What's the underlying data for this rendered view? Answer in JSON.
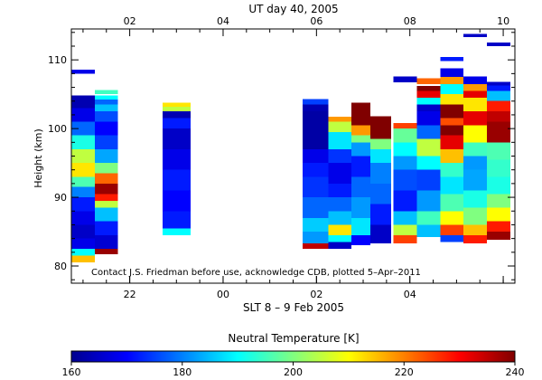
{
  "chart_data": {
    "type": "heatmap",
    "top_axis": {
      "title": "UT day 40, 2005",
      "tick_values": [
        2,
        4,
        6,
        8,
        10
      ],
      "tick_labels": [
        "02",
        "04",
        "06",
        "08",
        "10"
      ],
      "range": [
        0.75,
        10.25
      ]
    },
    "bottom_axis": {
      "title": "SLT 8 – 9 Feb 2005",
      "tick_values": [
        22,
        24,
        26,
        28
      ],
      "tick_labels": [
        "22",
        "00",
        "02",
        "04"
      ],
      "range": [
        20.75,
        30.25
      ]
    },
    "y_axis": {
      "title": "Height (km)",
      "tick_values": [
        80,
        90,
        100,
        110
      ],
      "tick_labels": [
        "80",
        "90",
        "100",
        "110"
      ],
      "range": [
        77.5,
        114.5
      ]
    },
    "annotation": "Contact J.S. Friedman before use, acknowledge CDB, plotted 5–Apr–2011",
    "colorbar": {
      "title": "Neutral Temperature [K]",
      "range": [
        160,
        240
      ],
      "tick_values": [
        160,
        180,
        200,
        220,
        240
      ],
      "tick_labels": [
        "160",
        "180",
        "200",
        "220",
        "240"
      ],
      "colormap": [
        "#00008f",
        "#0000ff",
        "#0080ff",
        "#00ffff",
        "#80ff80",
        "#ffff00",
        "#ff8000",
        "#ff0000",
        "#800000"
      ]
    },
    "columns": [
      {
        "ut": [
          0.75,
          1.25
        ],
        "z": [
          80.5,
          104.8
        ],
        "levels": [
          [
            80.5,
            215
          ],
          [
            81.5,
            190
          ],
          [
            82.5,
            168
          ],
          [
            84,
            165
          ],
          [
            86,
            168
          ],
          [
            88,
            172
          ],
          [
            90,
            180
          ],
          [
            91.5,
            196
          ],
          [
            93,
            212
          ],
          [
            95,
            205
          ],
          [
            97,
            192
          ],
          [
            99,
            178
          ],
          [
            101,
            168
          ],
          [
            103,
            163
          ]
        ]
      },
      {
        "ut": [
          0.75,
          1.25
        ],
        "z": [
          108,
          108.6
        ],
        "levels": [
          [
            108,
            168
          ]
        ]
      },
      {
        "ut": [
          1.25,
          1.75
        ],
        "z": [
          81.7,
          104.8
        ],
        "levels": [
          [
            81.7,
            238
          ],
          [
            82.5,
            166
          ],
          [
            84.5,
            172
          ],
          [
            86.5,
            185
          ],
          [
            88.5,
            205
          ],
          [
            89.5,
            228
          ],
          [
            90.5,
            238
          ],
          [
            92,
            222
          ],
          [
            93.5,
            200
          ],
          [
            95,
            183
          ],
          [
            97,
            175
          ],
          [
            99,
            170
          ],
          [
            101,
            176
          ],
          [
            102.5,
            185
          ],
          [
            103.5,
            178
          ],
          [
            104.2,
            190
          ]
        ]
      },
      {
        "ut": [
          1.25,
          1.75
        ],
        "z": [
          105,
          105.6
        ],
        "levels": [
          [
            105,
            195
          ]
        ]
      },
      {
        "ut": [
          2.7,
          3.3
        ],
        "z": [
          84.5,
          103.8
        ],
        "levels": [
          [
            84.5,
            190
          ],
          [
            85.5,
            172
          ],
          [
            88,
            170
          ],
          [
            91,
            172
          ],
          [
            94,
            168
          ],
          [
            97,
            165
          ],
          [
            100,
            172
          ],
          [
            101.5,
            163
          ],
          [
            102.5,
            205
          ],
          [
            103.2,
            212
          ]
        ]
      },
      {
        "ut": [
          5.7,
          6.25
        ],
        "z": [
          82.5,
          104.3
        ],
        "levels": [
          [
            82.5,
            235
          ],
          [
            83.3,
            182
          ],
          [
            85,
            186
          ],
          [
            87,
            178
          ],
          [
            90,
            174
          ],
          [
            93,
            172
          ],
          [
            95,
            168
          ],
          [
            97,
            162
          ],
          [
            102.5,
            163
          ],
          [
            103.5,
            175
          ]
        ]
      },
      {
        "ut": [
          6.25,
          6.75
        ],
        "z": [
          82.5,
          101.7
        ],
        "levels": [
          [
            82.5,
            165
          ],
          [
            83.5,
            190
          ],
          [
            84.5,
            212
          ],
          [
            86,
            185
          ],
          [
            88,
            178
          ],
          [
            90,
            172
          ],
          [
            92,
            168
          ],
          [
            95,
            174
          ],
          [
            97,
            188
          ],
          [
            99.5,
            205
          ],
          [
            101,
            218
          ]
        ]
      },
      {
        "ut": [
          6.75,
          7.15
        ],
        "z": [
          83,
          103.8
        ],
        "levels": [
          [
            83,
            170
          ],
          [
            84.5,
            188
          ],
          [
            87,
            182
          ],
          [
            90,
            178
          ],
          [
            93,
            172
          ],
          [
            96,
            182
          ],
          [
            98,
            200
          ],
          [
            99,
            218
          ],
          [
            100.5,
            240
          ]
        ]
      },
      {
        "ut": [
          7.15,
          7.6
        ],
        "z": [
          83.3,
          101.8
        ],
        "levels": [
          [
            83.3,
            165
          ],
          [
            86,
            172
          ],
          [
            89,
            178
          ],
          [
            92,
            180
          ],
          [
            95,
            188
          ],
          [
            97,
            200
          ],
          [
            98.5,
            240
          ]
        ]
      },
      {
        "ut": [
          7.65,
          8.15
        ],
        "z": [
          83.3,
          100.8
        ],
        "levels": [
          [
            83.3,
            225
          ],
          [
            84.5,
            205
          ],
          [
            86,
            185
          ],
          [
            88,
            172
          ],
          [
            91,
            176
          ],
          [
            94,
            182
          ],
          [
            96,
            190
          ],
          [
            98,
            198
          ],
          [
            100,
            225
          ]
        ]
      },
      {
        "ut": [
          7.65,
          8.15
        ],
        "z": [
          106.7,
          107.6
        ],
        "levels": [
          [
            106.7,
            165
          ]
        ]
      },
      {
        "ut": [
          8.15,
          8.65
        ],
        "z": [
          84.2,
          106.2
        ],
        "levels": [
          [
            84.2,
            185
          ],
          [
            86,
            195
          ],
          [
            88,
            182
          ],
          [
            91,
            175
          ],
          [
            94,
            190
          ],
          [
            96,
            205
          ],
          [
            98.5,
            178
          ],
          [
            100.5,
            168
          ],
          [
            102.5,
            165
          ],
          [
            103.5,
            190
          ],
          [
            104.5,
            232
          ],
          [
            105.5,
            240
          ]
        ]
      },
      {
        "ut": [
          8.15,
          8.65
        ],
        "z": [
          106.5,
          107.3
        ],
        "levels": [
          [
            106.5,
            222
          ]
        ]
      },
      {
        "ut": [
          8.65,
          9.15
        ],
        "z": [
          83.5,
          108.8
        ],
        "levels": [
          [
            83.5,
            175
          ],
          [
            84.5,
            225
          ],
          [
            86,
            210
          ],
          [
            88,
            196
          ],
          [
            90.5,
            188
          ],
          [
            93,
            194
          ],
          [
            95,
            215
          ],
          [
            97,
            232
          ],
          [
            99,
            240
          ],
          [
            100.5,
            224
          ],
          [
            101.5,
            240
          ],
          [
            103.5,
            212
          ],
          [
            105,
            190
          ],
          [
            106.5,
            218
          ],
          [
            107.5,
            168
          ]
        ]
      },
      {
        "ut": [
          8.65,
          9.15
        ],
        "z": [
          109.8,
          110.4
        ],
        "levels": [
          [
            109.8,
            172
          ]
        ]
      },
      {
        "ut": [
          9.15,
          9.65
        ],
        "z": [
          83.3,
          107.6
        ],
        "levels": [
          [
            83.3,
            228
          ],
          [
            84.5,
            215
          ],
          [
            86,
            200
          ],
          [
            88.5,
            192
          ],
          [
            91,
            183
          ],
          [
            94,
            182
          ],
          [
            96,
            195
          ],
          [
            98,
            210
          ],
          [
            100.5,
            232
          ],
          [
            102.5,
            212
          ],
          [
            104.5,
            232
          ],
          [
            105.5,
            218
          ],
          [
            106.5,
            168
          ]
        ]
      },
      {
        "ut": [
          9.15,
          9.65
        ],
        "z": [
          113.3,
          113.8
        ],
        "levels": [
          [
            113.3,
            165
          ]
        ]
      },
      {
        "ut": [
          9.65,
          10.15
        ],
        "z": [
          83.8,
          106.8
        ],
        "levels": [
          [
            83.8,
            238
          ],
          [
            85,
            228
          ],
          [
            86.5,
            210
          ],
          [
            88.5,
            200
          ],
          [
            90.5,
            192
          ],
          [
            93,
            194
          ],
          [
            95.5,
            196
          ],
          [
            98,
            238
          ],
          [
            101,
            235
          ],
          [
            102.5,
            228
          ],
          [
            104,
            185
          ],
          [
            105.5,
            172
          ],
          [
            106.3,
            165
          ]
        ]
      },
      {
        "ut": [
          9.65,
          10.15
        ],
        "z": [
          112,
          112.5
        ],
        "levels": [
          [
            112,
            165
          ]
        ]
      }
    ]
  }
}
